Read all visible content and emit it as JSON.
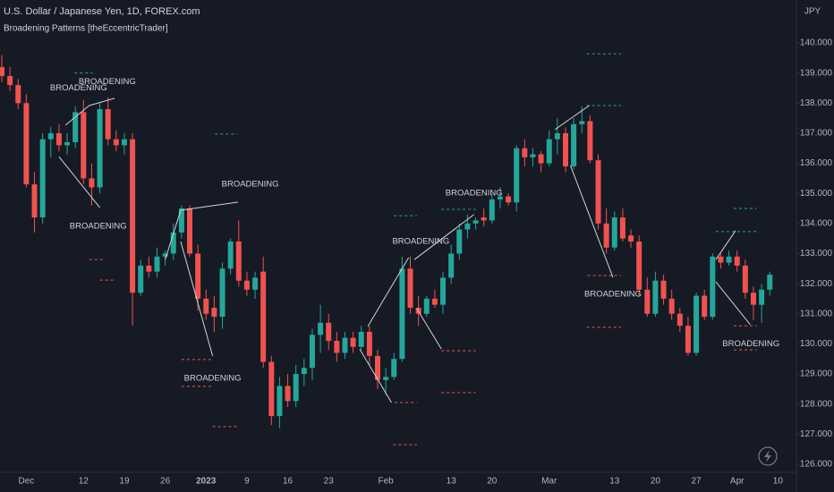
{
  "chart_data": {
    "type": "candlestick",
    "title": "U.S. Dollar / Japanese Yen, 1D, FOREX.com",
    "subtitle": "Broadening Patterns [theEccentricTrader]",
    "y_axis_label": "JPY",
    "up_color": "#26a69a",
    "down_color": "#ef5350",
    "grid": false,
    "open": [
      139.2,
      138.9,
      138.6,
      138.0,
      135.3,
      134.2,
      136.8,
      137.0,
      136.6,
      136.7,
      137.7,
      135.5,
      135.2,
      137.8,
      136.8,
      136.6,
      136.8,
      131.7,
      132.6,
      132.4,
      132.9,
      133.0,
      133.7,
      134.5,
      133.0,
      131.5,
      131.2,
      130.9,
      132.5,
      133.4,
      132.1,
      131.8,
      132.4,
      129.4,
      127.6,
      128.6,
      128.1,
      129.0,
      129.2,
      130.3,
      130.7,
      130.1,
      129.7,
      130.2,
      129.9,
      130.4,
      129.6,
      128.8,
      128.9,
      129.5,
      132.5,
      131.2,
      131.0,
      131.5,
      131.3,
      132.2,
      133.0,
      133.8,
      134.0,
      134.2,
      134.1,
      134.8,
      134.9,
      134.7,
      136.5,
      136.2,
      136.3,
      136.0,
      136.8,
      137.0,
      135.9,
      137.3,
      137.4,
      136.1,
      134.0,
      133.2,
      134.2,
      133.6,
      133.4,
      131.8,
      131.0,
      132.1,
      131.5,
      131.0,
      130.6,
      129.7,
      131.6,
      130.9,
      132.9,
      132.7,
      132.9,
      132.6,
      131.7,
      131.3,
      131.8
    ],
    "high": [
      139.6,
      139.2,
      138.8,
      138.3,
      135.7,
      137.0,
      137.2,
      137.3,
      137.0,
      137.9,
      138.1,
      136.0,
      138.0,
      138.2,
      137.1,
      137.0,
      137.0,
      132.8,
      132.9,
      133.2,
      133.1,
      134.0,
      134.6,
      134.6,
      133.3,
      131.8,
      131.6,
      132.7,
      133.5,
      134.1,
      132.4,
      132.4,
      132.9,
      129.6,
      128.9,
      129.0,
      129.3,
      129.5,
      130.5,
      131.3,
      131.0,
      130.4,
      130.4,
      130.4,
      130.6,
      130.6,
      129.8,
      129.2,
      129.7,
      132.9,
      132.9,
      131.6,
      131.6,
      131.8,
      132.4,
      133.3,
      134.0,
      134.3,
      134.2,
      134.5,
      135.0,
      135.2,
      135.0,
      136.6,
      136.8,
      136.5,
      136.4,
      137.1,
      137.5,
      137.2,
      137.5,
      137.9,
      137.6,
      136.3,
      134.5,
      134.4,
      134.5,
      133.8,
      133.6,
      132.2,
      132.4,
      132.3,
      131.8,
      131.2,
      130.9,
      131.7,
      131.8,
      133.0,
      133.0,
      133.1,
      133.1,
      132.8,
      131.9,
      132.0,
      132.4
    ],
    "low": [
      138.7,
      138.4,
      137.8,
      135.2,
      133.7,
      134.0,
      136.2,
      136.4,
      136.3,
      136.5,
      135.3,
      134.6,
      135.0,
      136.6,
      136.4,
      136.3,
      130.6,
      131.6,
      132.2,
      132.2,
      132.6,
      132.8,
      133.5,
      132.9,
      131.1,
      130.8,
      130.4,
      130.5,
      132.3,
      131.9,
      131.6,
      131.5,
      129.2,
      127.3,
      127.2,
      127.9,
      127.9,
      128.6,
      128.8,
      129.7,
      129.8,
      129.4,
      129.5,
      129.7,
      129.8,
      129.3,
      128.5,
      128.3,
      128.8,
      129.4,
      131.0,
      130.6,
      130.9,
      131.2,
      131.0,
      132.0,
      132.8,
      133.5,
      133.8,
      133.9,
      134.0,
      134.5,
      134.6,
      134.4,
      135.9,
      135.9,
      135.7,
      135.9,
      136.3,
      135.7,
      135.8,
      137.0,
      136.0,
      133.8,
      133.0,
      133.1,
      133.4,
      133.2,
      131.6,
      130.9,
      130.9,
      131.3,
      130.8,
      130.4,
      129.6,
      129.6,
      130.8,
      130.8,
      132.5,
      132.6,
      132.4,
      131.5,
      130.8,
      130.7,
      131.6
    ],
    "close": [
      138.9,
      138.6,
      138.0,
      135.3,
      134.2,
      136.8,
      137.0,
      136.6,
      136.7,
      137.7,
      135.5,
      135.2,
      137.8,
      136.8,
      136.6,
      136.8,
      131.7,
      132.6,
      132.4,
      132.9,
      133.0,
      133.7,
      134.5,
      133.0,
      131.5,
      131.0,
      130.9,
      132.5,
      133.4,
      132.1,
      131.8,
      132.2,
      129.4,
      127.6,
      128.6,
      128.1,
      129.0,
      129.2,
      130.3,
      130.7,
      130.1,
      129.7,
      130.2,
      129.9,
      130.4,
      129.6,
      128.8,
      128.9,
      129.5,
      132.5,
      131.2,
      131.0,
      131.5,
      131.3,
      132.2,
      133.0,
      133.8,
      134.0,
      134.1,
      134.1,
      134.8,
      134.9,
      134.7,
      136.5,
      136.2,
      136.3,
      136.0,
      136.8,
      137.0,
      135.9,
      137.3,
      137.4,
      136.1,
      134.0,
      133.2,
      134.2,
      133.5,
      133.4,
      131.8,
      131.0,
      132.1,
      131.5,
      131.0,
      130.6,
      129.7,
      131.6,
      130.9,
      132.9,
      132.7,
      132.9,
      132.6,
      131.7,
      131.3,
      131.8,
      132.3
    ],
    "xlim": [
      -0.22,
      97.26
    ],
    "xticks": [
      {
        "value": 3,
        "label": "Dec"
      },
      {
        "value": 10,
        "label": "12"
      },
      {
        "value": 15,
        "label": "19"
      },
      {
        "value": 20,
        "label": "26"
      },
      {
        "value": 25,
        "label": "2023"
      },
      {
        "value": 30,
        "label": "9"
      },
      {
        "value": 35,
        "label": "16"
      },
      {
        "value": 40,
        "label": "23"
      },
      {
        "value": 47,
        "label": "Feb"
      },
      {
        "value": 55,
        "label": "13"
      },
      {
        "value": 60,
        "label": "20"
      },
      {
        "value": 67,
        "label": "Mar"
      },
      {
        "value": 75,
        "label": "13"
      },
      {
        "value": 80,
        "label": "20"
      },
      {
        "value": 85,
        "label": "27"
      },
      {
        "value": 90,
        "label": "Apr"
      },
      {
        "value": 95,
        "label": "10"
      }
    ],
    "ylim": [
      125.731,
      141.427
    ],
    "yticks": [
      {
        "value": 126,
        "label": "126.000"
      },
      {
        "value": 127,
        "label": "127.000"
      },
      {
        "value": 128,
        "label": "128.000"
      },
      {
        "value": 129,
        "label": "129.000"
      },
      {
        "value": 130,
        "label": "130.000"
      },
      {
        "value": 131,
        "label": "131.000"
      },
      {
        "value": 132,
        "label": "132.000"
      },
      {
        "value": 133,
        "label": "133.000"
      },
      {
        "value": 134,
        "label": "134.000"
      },
      {
        "value": 135,
        "label": "135.000"
      },
      {
        "value": 136,
        "label": "136.000"
      },
      {
        "value": 137,
        "label": "137.000"
      },
      {
        "value": 138,
        "label": "138.000"
      },
      {
        "value": 139,
        "label": "139.000"
      },
      {
        "value": 140,
        "label": "140.000"
      }
    ],
    "annotations": {
      "line_color": "#d1d4dc",
      "labels": [
        {
          "text": "BROADENING",
          "x": 9.4,
          "y": 138.5
        },
        {
          "text": "BROADENING",
          "x": 12.9,
          "y": 138.7
        },
        {
          "text": "BROADENING",
          "x": 11.8,
          "y": 133.9
        },
        {
          "text": "BROADENING",
          "x": 30.4,
          "y": 135.3
        },
        {
          "text": "BROADENING",
          "x": 25.8,
          "y": 128.85
        },
        {
          "text": "BROADENING",
          "x": 51.3,
          "y": 133.4
        },
        {
          "text": "BROADENING",
          "x": 57.8,
          "y": 135.0
        },
        {
          "text": "BROADENING",
          "x": 74.8,
          "y": 131.65
        },
        {
          "text": "BROADENING",
          "x": 91.7,
          "y": 130.0
        }
      ],
      "lines": [
        {
          "x": [
            7.8,
            10.7
          ],
          "y": [
            137.27,
            137.92
          ]
        },
        {
          "x": [
            10.7,
            13.8
          ],
          "y": [
            137.92,
            138.16
          ]
        },
        {
          "x": [
            7.0,
            12.0
          ],
          "y": [
            136.22,
            134.53
          ]
        },
        {
          "x": [
            20.0,
            21.9
          ],
          "y": [
            132.8,
            134.44
          ]
        },
        {
          "x": [
            21.9,
            28.9
          ],
          "y": [
            134.44,
            134.71
          ]
        },
        {
          "x": [
            21.9,
            25.8
          ],
          "y": [
            133.4,
            129.6
          ]
        },
        {
          "x": [
            44.8,
            49.8
          ],
          "y": [
            130.58,
            132.87
          ]
        },
        {
          "x": [
            43.8,
            47.7
          ],
          "y": [
            129.83,
            128.05
          ]
        },
        {
          "x": [
            50.5,
            57.8
          ],
          "y": [
            132.8,
            134.3
          ]
        },
        {
          "x": [
            50.8,
            53.8
          ],
          "y": [
            131.17,
            129.83
          ]
        },
        {
          "x": [
            67.7,
            71.9
          ],
          "y": [
            137.12,
            137.92
          ]
        },
        {
          "x": [
            69.6,
            74.8
          ],
          "y": [
            135.93,
            132.21
          ]
        },
        {
          "x": [
            87.4,
            89.8
          ],
          "y": [
            132.8,
            133.76
          ]
        },
        {
          "x": [
            87.4,
            91.6
          ],
          "y": [
            132.06,
            130.64
          ]
        }
      ],
      "levels": [
        {
          "x": [
            8.9,
            11.1
          ],
          "price": 139.0,
          "color": "#26a69a"
        },
        {
          "x": [
            26.1,
            28.8
          ],
          "price": 136.97,
          "color": "#26a69a"
        },
        {
          "x": [
            71.6,
            75.8
          ],
          "price": 139.64,
          "color": "#26a69a"
        },
        {
          "x": [
            71.6,
            75.8
          ],
          "price": 137.92,
          "color": "#26a69a"
        },
        {
          "x": [
            48.0,
            50.8
          ],
          "price": 134.26,
          "color": "#26a69a"
        },
        {
          "x": [
            53.8,
            58.0
          ],
          "price": 134.47,
          "color": "#26a69a"
        },
        {
          "x": [
            89.6,
            92.4
          ],
          "price": 134.5,
          "color": "#26a69a"
        },
        {
          "x": [
            87.4,
            92.4
          ],
          "price": 133.73,
          "color": "#26a69a"
        },
        {
          "x": [
            10.7,
            12.7
          ],
          "price": 132.8,
          "color": "#ef5350"
        },
        {
          "x": [
            12.0,
            14.0
          ],
          "price": 132.12,
          "color": "#ef5350"
        },
        {
          "x": [
            22.0,
            25.8
          ],
          "price": 129.48,
          "color": "#ef5350"
        },
        {
          "x": [
            22.0,
            25.8
          ],
          "price": 128.59,
          "color": "#ef5350"
        },
        {
          "x": [
            25.8,
            28.8
          ],
          "price": 127.25,
          "color": "#ef5350"
        },
        {
          "x": [
            48.1,
            50.8
          ],
          "price": 128.05,
          "color": "#ef5350"
        },
        {
          "x": [
            53.8,
            58.0
          ],
          "price": 128.38,
          "color": "#ef5350"
        },
        {
          "x": [
            53.8,
            58.0
          ],
          "price": 129.77,
          "color": "#ef5350"
        },
        {
          "x": [
            47.9,
            50.8
          ],
          "price": 126.65,
          "color": "#ef5350"
        },
        {
          "x": [
            71.6,
            75.8
          ],
          "price": 130.55,
          "color": "#ef5350"
        },
        {
          "x": [
            71.7,
            75.8
          ],
          "price": 132.27,
          "color": "#ef5350"
        },
        {
          "x": [
            89.6,
            92.4
          ],
          "price": 130.6,
          "color": "#ef5350"
        },
        {
          "x": [
            89.6,
            92.4
          ],
          "price": 129.8,
          "color": "#ef5350"
        }
      ]
    }
  }
}
